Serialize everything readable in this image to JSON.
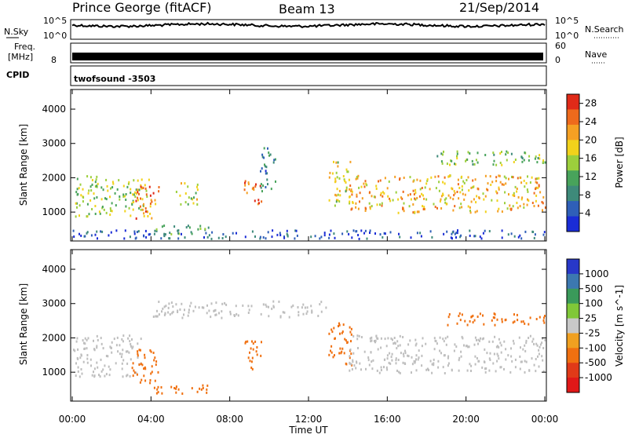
{
  "header": {
    "station": "Prince George (fitACF)",
    "beam": "Beam 13",
    "date": "21/Sep/2014"
  },
  "top_panels": {
    "nsky_label": "N.Sky",
    "nsky_ticks": [
      "10^5",
      "10^0"
    ],
    "nsearch_label": "N.Search",
    "nsearch_ticks": [
      "10^5",
      "10^0"
    ],
    "freq_label_1": "Freq.",
    "freq_label_2": "[MHz]",
    "freq_tick": "8",
    "nave_label": "Nave",
    "nave_ticks": [
      "60",
      "0"
    ],
    "cpid_label": "CPID",
    "cpid_value": "twofsound -3503"
  },
  "chart_data": [
    {
      "type": "heatmap",
      "name": "power",
      "ylabel": "Slant Range [km]",
      "xlabel": "Time UT",
      "x_ticks": [
        "00:00",
        "04:00",
        "08:00",
        "12:00",
        "16:00",
        "20:00",
        "00:00"
      ],
      "x_range_hours": [
        0,
        24
      ],
      "y_ticks": [
        "1000",
        "2000",
        "3000",
        "4000"
      ],
      "y_range_km": [
        180,
        4550
      ],
      "colorbar": {
        "label": "Power [dB]",
        "ticks": [
          "4",
          "8",
          "12",
          "16",
          "20",
          "24",
          "28"
        ],
        "range": [
          0,
          30
        ],
        "colors": [
          "#1a2cd6",
          "#2f5fb8",
          "#3e8a7a",
          "#48a35b",
          "#9ccf3c",
          "#f2d21b",
          "#f5a023",
          "#ee6a1c",
          "#e02a18"
        ]
      },
      "echo_regions": [
        {
          "t0": 0.1,
          "t1": 3.9,
          "r0": 900,
          "r1": 2100,
          "value": 15
        },
        {
          "t0": 3.2,
          "t1": 4.4,
          "r0": 800,
          "r1": 1800,
          "value": 24
        },
        {
          "t0": 4.0,
          "t1": 7.0,
          "r0": 380,
          "r1": 650,
          "value": 12
        },
        {
          "t0": 5.2,
          "t1": 6.4,
          "r0": 1200,
          "r1": 1900,
          "value": 16
        },
        {
          "t0": 8.7,
          "t1": 9.6,
          "r0": 1100,
          "r1": 2000,
          "value": 26
        },
        {
          "t0": 9.5,
          "t1": 10.3,
          "r0": 1600,
          "r1": 2900,
          "value": 8
        },
        {
          "t0": 13.0,
          "t1": 14.2,
          "r0": 1200,
          "r1": 2500,
          "value": 18
        },
        {
          "t0": 14.0,
          "t1": 24.0,
          "r0": 1000,
          "r1": 2100,
          "value": 20
        },
        {
          "t0": 18.5,
          "t1": 24.0,
          "r0": 2400,
          "r1": 2800,
          "value": 14
        },
        {
          "t0": 0.0,
          "t1": 24.0,
          "r0": 250,
          "r1": 500,
          "value": 5
        }
      ]
    },
    {
      "type": "heatmap",
      "name": "velocity",
      "ylabel": "Slant Range [km]",
      "xlabel": "Time UT",
      "x_ticks": [
        "00:00",
        "04:00",
        "08:00",
        "12:00",
        "16:00",
        "20:00",
        "00:00"
      ],
      "x_range_hours": [
        0,
        24
      ],
      "y_ticks": [
        "1000",
        "2000",
        "3000",
        "4000"
      ],
      "y_range_km": [
        180,
        4550
      ],
      "colorbar": {
        "label": "Velocity [m s^-1]",
        "ticks": [
          "1000",
          "500",
          "100",
          "25",
          "-25",
          "-100",
          "-500",
          "-1000"
        ],
        "colors": [
          "#2838c8",
          "#3c78b0",
          "#3a9a5a",
          "#80c838",
          "#c8c8c8",
          "#f0a020",
          "#f07010",
          "#e03a18",
          "#e01818"
        ]
      },
      "ground_scatter_color": "#bebebe",
      "echo_regions": [
        {
          "t0": 0.0,
          "t1": 3.5,
          "r0": 900,
          "r1": 2100,
          "value": 0
        },
        {
          "t0": 3.0,
          "t1": 4.5,
          "r0": 700,
          "r1": 1700,
          "value": -300
        },
        {
          "t0": 4.0,
          "t1": 7.0,
          "r0": 400,
          "r1": 650,
          "value": -300
        },
        {
          "t0": 8.7,
          "t1": 9.6,
          "r0": 1100,
          "r1": 2000,
          "value": -200
        },
        {
          "t0": 13.0,
          "t1": 14.2,
          "r0": 1200,
          "r1": 2500,
          "value": -150
        },
        {
          "t0": 14.0,
          "t1": 24.0,
          "r0": 1000,
          "r1": 2100,
          "value": 0
        },
        {
          "t0": 19.0,
          "t1": 24.0,
          "r0": 2400,
          "r1": 2750,
          "value": -200
        },
        {
          "t0": 4.0,
          "t1": 13.0,
          "r0": 2600,
          "r1": 3100,
          "value": 0
        }
      ]
    }
  ]
}
